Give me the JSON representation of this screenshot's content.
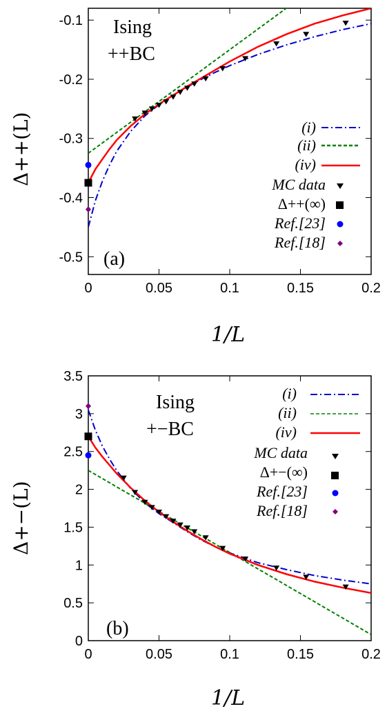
{
  "chart_data": [
    {
      "type": "line",
      "panel_label": "(a)",
      "title_lines": [
        "Ising",
        "++BC"
      ],
      "xlabel": "1/L",
      "ylabel": "Δ++(L)",
      "xlim": [
        0,
        0.2
      ],
      "ylim": [
        -0.53,
        -0.08
      ],
      "xticks": [
        0,
        0.05,
        0.1,
        0.15,
        0.2
      ],
      "xtick_labels": [
        "0",
        "0.05",
        "0.1",
        "0.15",
        "0.2"
      ],
      "yticks": [
        -0.5,
        -0.4,
        -0.3,
        -0.2,
        -0.1
      ],
      "ytick_labels": [
        "-0.5",
        "-0.4",
        "-0.3",
        "-0.2",
        "-0.1"
      ],
      "legend_position": "right",
      "series": [
        {
          "name": "(i)",
          "kind": "line",
          "color": "#0000cc",
          "dash": "dashdot",
          "x": [
            0,
            0.005,
            0.01,
            0.015,
            0.02,
            0.03,
            0.04,
            0.05,
            0.06,
            0.07,
            0.08,
            0.09,
            0.1,
            0.12,
            0.14,
            0.16,
            0.18,
            0.2
          ],
          "y": [
            -0.45,
            -0.405,
            -0.372,
            -0.345,
            -0.322,
            -0.288,
            -0.262,
            -0.243,
            -0.227,
            -0.213,
            -0.2,
            -0.188,
            -0.177,
            -0.158,
            -0.142,
            -0.128,
            -0.116,
            -0.106
          ]
        },
        {
          "name": "(ii)",
          "kind": "line",
          "color": "#008000",
          "dash": "dashed",
          "x": [
            0,
            0.2
          ],
          "y": [
            -0.325,
            0.025
          ]
        },
        {
          "name": "(iv)",
          "kind": "line",
          "color": "#ff0000",
          "dash": "solid",
          "x": [
            0,
            0.005,
            0.01,
            0.015,
            0.02,
            0.03,
            0.04,
            0.05,
            0.06,
            0.07,
            0.08,
            0.09,
            0.1,
            0.12,
            0.14,
            0.16,
            0.18,
            0.2
          ],
          "y": [
            -0.375,
            -0.352,
            -0.335,
            -0.318,
            -0.303,
            -0.279,
            -0.259,
            -0.242,
            -0.227,
            -0.212,
            -0.198,
            -0.184,
            -0.17,
            -0.145,
            -0.124,
            -0.106,
            -0.092,
            -0.08
          ]
        },
        {
          "name": "MC data",
          "kind": "marker",
          "marker": "triangle-down",
          "color": "#000000",
          "x": [
            0.033,
            0.04,
            0.045,
            0.05,
            0.055,
            0.06,
            0.065,
            0.07,
            0.075,
            0.083,
            0.095,
            0.111,
            0.133,
            0.154,
            0.182
          ],
          "y": [
            -0.267,
            -0.257,
            -0.25,
            -0.244,
            -0.238,
            -0.23,
            -0.222,
            -0.215,
            -0.208,
            -0.199,
            -0.182,
            -0.165,
            -0.14,
            -0.124,
            -0.105
          ]
        },
        {
          "name": "Δ++(∞)",
          "kind": "marker",
          "marker": "square",
          "color": "#000000",
          "x": [
            0
          ],
          "y": [
            -0.375
          ]
        },
        {
          "name": "Ref.[23]",
          "kind": "marker",
          "marker": "circle",
          "color": "#0000ff",
          "x": [
            0
          ],
          "y": [
            -0.345
          ]
        },
        {
          "name": "Ref.[18]",
          "kind": "marker",
          "marker": "diamond",
          "color": "#800080",
          "x": [
            0
          ],
          "y": [
            -0.42
          ]
        }
      ]
    },
    {
      "type": "line",
      "panel_label": "(b)",
      "title_lines": [
        "Ising",
        "+−BC"
      ],
      "xlabel": "1/L",
      "ylabel": "Δ+−(L)",
      "xlim": [
        0,
        0.2
      ],
      "ylim": [
        0,
        3.5
      ],
      "xticks": [
        0,
        0.05,
        0.1,
        0.15,
        0.2
      ],
      "xtick_labels": [
        "0",
        "0.05",
        "0.1",
        "0.15",
        "0.2"
      ],
      "yticks": [
        0,
        0.5,
        1,
        1.5,
        2,
        2.5,
        3,
        3.5
      ],
      "ytick_labels": [
        "0",
        "0.5",
        "1",
        "1.5",
        "2",
        "2.5",
        "3",
        "3.5"
      ],
      "legend_position": "top-right",
      "series": [
        {
          "name": "(i)",
          "kind": "line",
          "color": "#0000cc",
          "dash": "dashdot",
          "x": [
            0,
            0.005,
            0.01,
            0.015,
            0.02,
            0.03,
            0.04,
            0.05,
            0.06,
            0.07,
            0.08,
            0.09,
            0.1,
            0.12,
            0.14,
            0.16,
            0.18,
            0.2
          ],
          "y": [
            3.05,
            2.78,
            2.57,
            2.4,
            2.25,
            2.01,
            1.82,
            1.68,
            1.56,
            1.44,
            1.33,
            1.24,
            1.16,
            1.03,
            0.94,
            0.86,
            0.8,
            0.75
          ]
        },
        {
          "name": "(ii)",
          "kind": "line",
          "color": "#008000",
          "dash": "dashed",
          "x": [
            0,
            0.2
          ],
          "y": [
            2.25,
            0.08
          ]
        },
        {
          "name": "(iv)",
          "kind": "line",
          "color": "#ff0000",
          "dash": "solid",
          "x": [
            0,
            0.005,
            0.01,
            0.015,
            0.02,
            0.03,
            0.04,
            0.05,
            0.06,
            0.07,
            0.08,
            0.09,
            0.1,
            0.12,
            0.14,
            0.16,
            0.18,
            0.2
          ],
          "y": [
            2.7,
            2.55,
            2.43,
            2.32,
            2.21,
            2.02,
            1.85,
            1.7,
            1.57,
            1.45,
            1.34,
            1.24,
            1.15,
            1.0,
            0.88,
            0.78,
            0.7,
            0.63
          ]
        },
        {
          "name": "MC data",
          "kind": "marker",
          "marker": "triangle-down",
          "color": "#000000",
          "x": [
            0.025,
            0.033,
            0.04,
            0.045,
            0.05,
            0.055,
            0.06,
            0.065,
            0.07,
            0.075,
            0.083,
            0.095,
            0.111,
            0.133,
            0.154,
            0.182
          ],
          "y": [
            2.15,
            1.96,
            1.83,
            1.76,
            1.7,
            1.64,
            1.58,
            1.53,
            1.49,
            1.44,
            1.36,
            1.22,
            1.08,
            0.96,
            0.84,
            0.71
          ]
        },
        {
          "name": "Δ+−(∞)",
          "kind": "marker",
          "marker": "square",
          "color": "#000000",
          "x": [
            0
          ],
          "y": [
            2.7
          ]
        },
        {
          "name": "Ref.[23]",
          "kind": "marker",
          "marker": "circle",
          "color": "#0000ff",
          "x": [
            0
          ],
          "y": [
            2.45
          ]
        },
        {
          "name": "Ref.[18]",
          "kind": "marker",
          "marker": "diamond",
          "color": "#800080",
          "x": [
            0
          ],
          "y": [
            3.1
          ]
        }
      ]
    }
  ]
}
